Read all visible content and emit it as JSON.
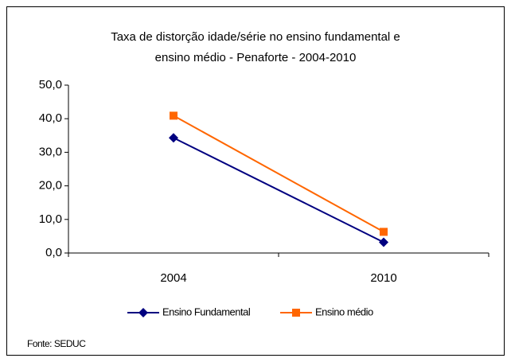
{
  "chart_data": {
    "type": "line",
    "title": [
      "Taxa de distorção idade/série no ensino fundamental e",
      "ensino médio - Penaforte -  2004-2010"
    ],
    "categories": [
      "2004",
      "2010"
    ],
    "series": [
      {
        "name": "Ensino Fundamental",
        "color": "#000080",
        "marker": "diamond",
        "values": [
          34.3,
          3.2
        ]
      },
      {
        "name": "Ensino médio",
        "color": "#ff6600",
        "marker": "square",
        "values": [
          40.9,
          6.3
        ]
      }
    ],
    "ylim": [
      0,
      50
    ],
    "yticks": [
      {
        "value": 0,
        "label": "0,0"
      },
      {
        "value": 10,
        "label": "10,0"
      },
      {
        "value": 20,
        "label": "20,0"
      },
      {
        "value": 30,
        "label": "30,0"
      },
      {
        "value": 40,
        "label": "40,0"
      },
      {
        "value": 50,
        "label": "50,0"
      }
    ],
    "grid": false,
    "legend": "bottom",
    "source": "Fonte: SEDUC"
  }
}
